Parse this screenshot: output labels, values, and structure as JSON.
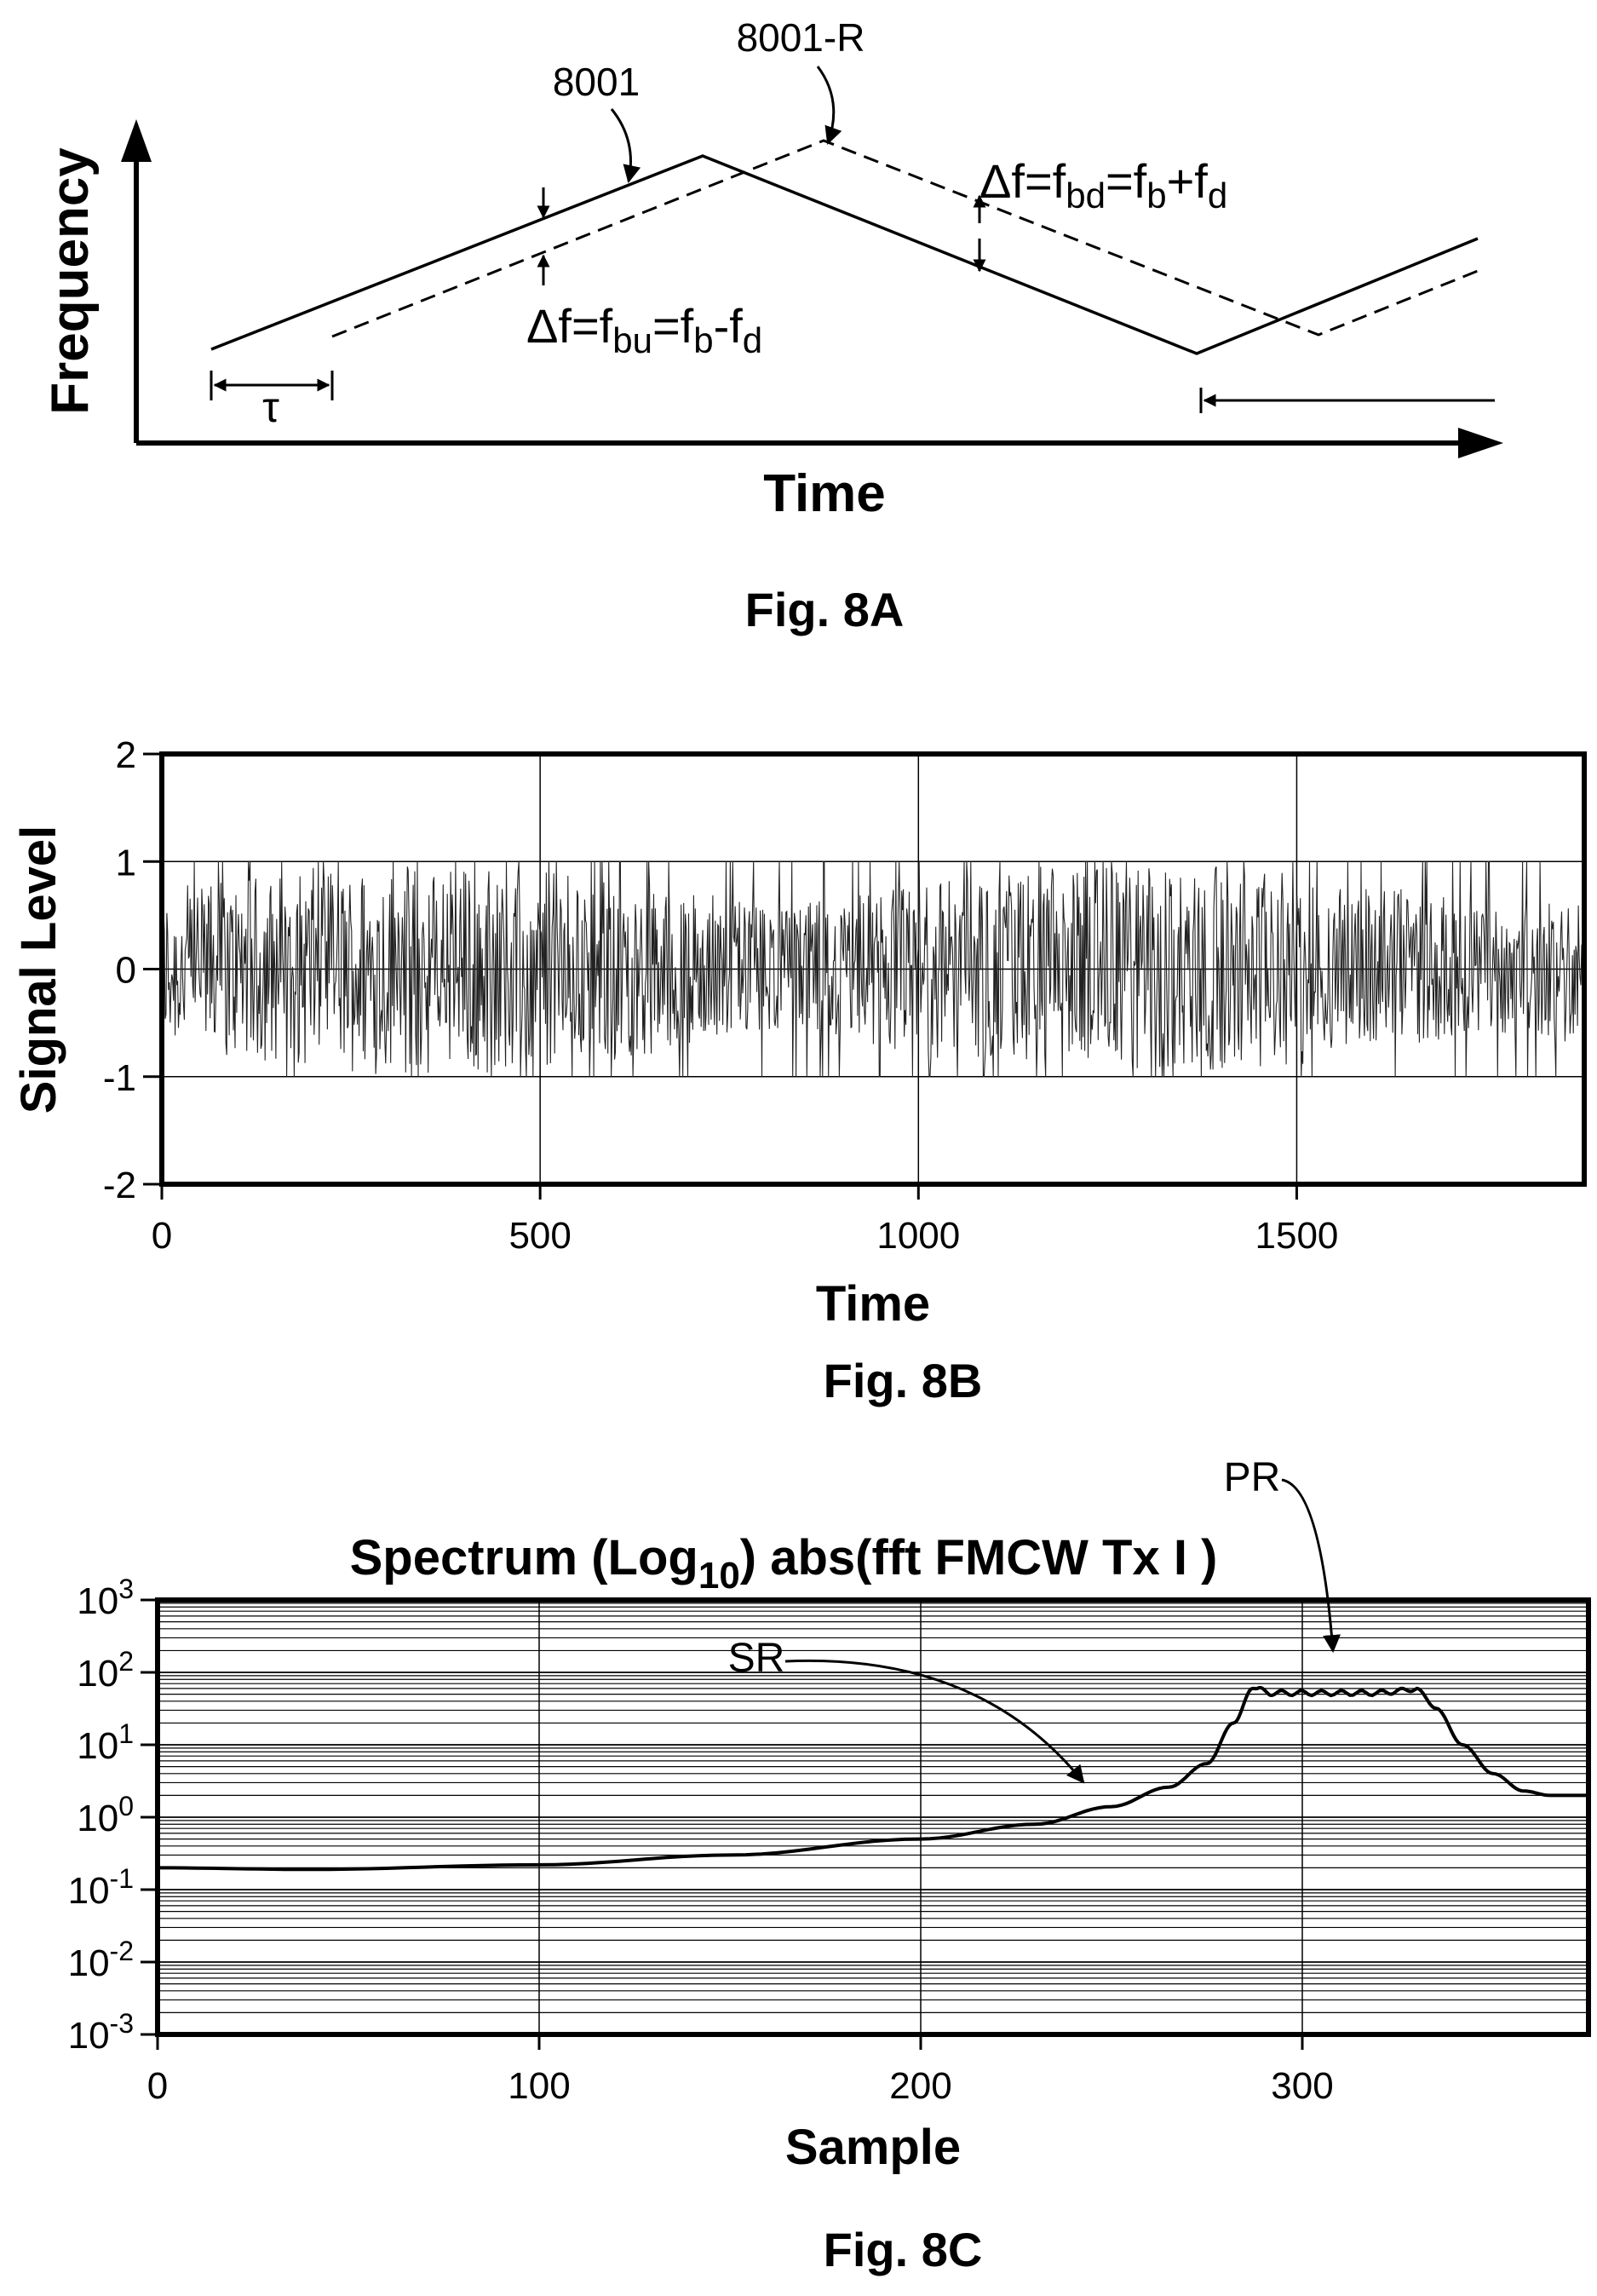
{
  "fig8a": {
    "caption": "Fig. 8A",
    "ylabel": "Frequency",
    "xlabel": "Time",
    "tx_ref": "8001",
    "rx_ref": "8001-R",
    "tau": "τ",
    "eq_up": {
      "a": "Δf=f",
      "s1": "bu",
      "b": "=f",
      "s2": "b",
      "c": "-f",
      "s3": "d"
    },
    "eq_down": {
      "a": "Δf=f",
      "s1": "bd",
      "b": "=f",
      "s2": "b",
      "c": "+f",
      "s3": "d"
    }
  },
  "fig8b": {
    "caption": "Fig. 8B",
    "ylabel": "Signal Level",
    "xlabel": "Time",
    "yticks": [
      "2",
      "1",
      "0",
      "-1",
      "-2"
    ],
    "xticks": [
      "0",
      "500",
      "1000",
      "1500"
    ]
  },
  "fig8c": {
    "caption": "Fig. 8C",
    "title": {
      "a": "Spectrum (Log",
      "sub": "10",
      "b": ") abs(fft FMCW Tx I )"
    },
    "xlabel": "Sample",
    "xticks": [
      "0",
      "100",
      "200",
      "300"
    ],
    "yticks": [
      {
        "base": "10",
        "exp": "3"
      },
      {
        "base": "10",
        "exp": "2"
      },
      {
        "base": "10",
        "exp": "1"
      },
      {
        "base": "10",
        "exp": "0"
      },
      {
        "base": "10",
        "exp": "-1"
      },
      {
        "base": "10",
        "exp": "-2"
      },
      {
        "base": "10",
        "exp": "-3"
      }
    ],
    "sr_label": "SR",
    "pr_label": "PR"
  },
  "chart_data": [
    {
      "type": "line",
      "title": "",
      "xlabel": "Time",
      "ylabel": "Signal Level",
      "xlim": [
        0,
        1880
      ],
      "ylim": [
        -2,
        2
      ],
      "grid": true,
      "envelope": {
        "upper": 1,
        "lower": -1
      },
      "series": [
        {
          "description_values": "dense oscillation between -1 and 1 over 0-1880"
        }
      ]
    },
    {
      "type": "line",
      "title": "Spectrum (Log10) abs(fft FMCW Tx I )",
      "xlabel": "Sample",
      "ylabel": "",
      "yscale": "log",
      "xlim": [
        0,
        375
      ],
      "ylim": [
        0.001,
        1000
      ],
      "grid": true,
      "series": [
        {
          "x": [
            0,
            40,
            100,
            150,
            200,
            230,
            250,
            265,
            275,
            282,
            287,
            292,
            300,
            310,
            320,
            325,
            330,
            335,
            342,
            350,
            358,
            365,
            375
          ],
          "y": [
            0.2,
            0.19,
            0.22,
            0.3,
            0.5,
            0.8,
            1.4,
            2.6,
            5.5,
            20,
            60,
            52,
            52,
            52,
            52,
            55,
            60,
            32,
            10,
            4,
            2.3,
            2.0,
            2.0
          ]
        }
      ]
    }
  ]
}
